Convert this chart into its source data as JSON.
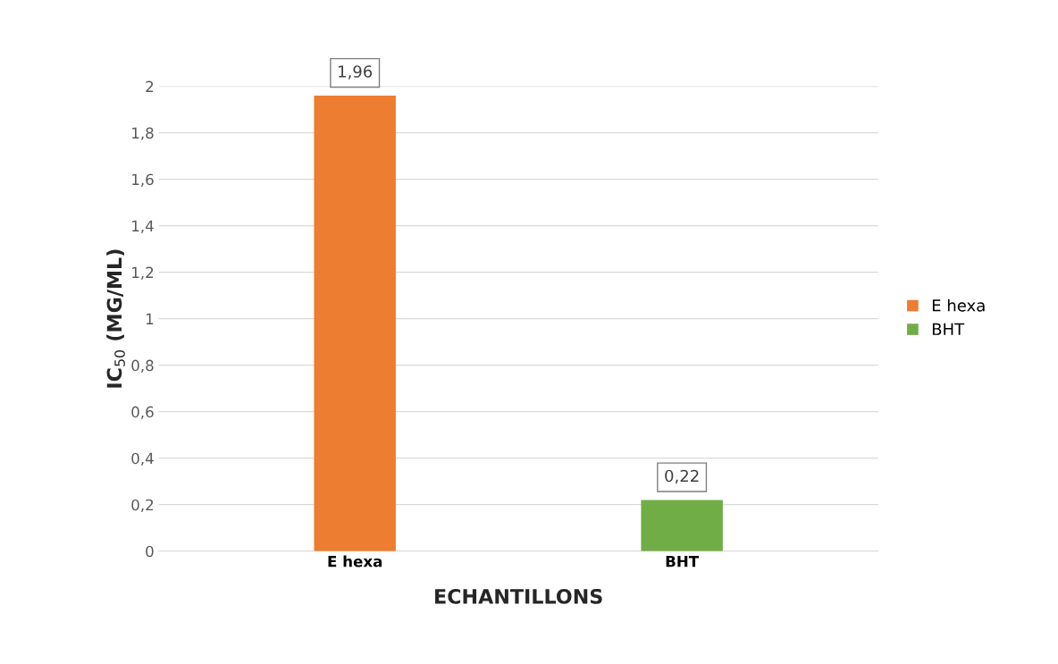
{
  "chart_data": {
    "type": "bar",
    "xlabel": "ECHANTILLONS",
    "ylabel": "IC$_{50}$ (MG/ML)",
    "categories": [
      "E hexa",
      "BHT"
    ],
    "series": [
      {
        "name": "E hexa",
        "color": "#ed7d31",
        "values": [
          1.96,
          null
        ],
        "value_labels": [
          "1,96",
          null
        ]
      },
      {
        "name": "BHT",
        "color": "#70ad47",
        "values": [
          null,
          0.22
        ],
        "value_labels": [
          null,
          "0,22"
        ]
      }
    ],
    "ylim": [
      0,
      2
    ],
    "yticks": [
      0,
      {
        "value": 0.2,
        "label": "0,2"
      },
      {
        "value": 0.4,
        "label": "0,4"
      },
      {
        "value": 0.6,
        "label": "0,6"
      },
      {
        "value": 0.8,
        "label": "0,8"
      },
      1,
      {
        "value": 1.2,
        "label": "1,2"
      },
      {
        "value": 1.4,
        "label": "1,4"
      },
      {
        "value": 1.6,
        "label": "1,6"
      },
      {
        "value": 1.8,
        "label": "1,8"
      },
      2
    ],
    "grid": "y",
    "legend": "right"
  }
}
